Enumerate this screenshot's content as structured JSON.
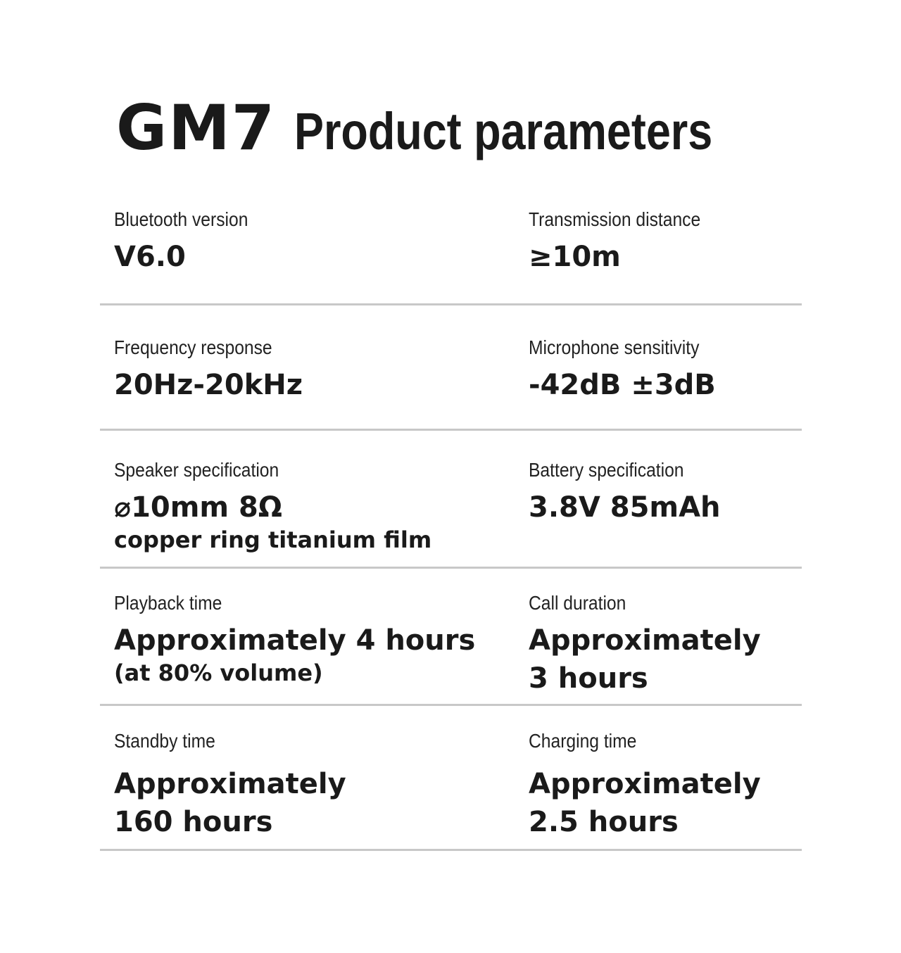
{
  "title": {
    "model": "GM7",
    "text": "Product parameters"
  },
  "params": [
    {
      "label": "Bluetooth version",
      "value": "V6.0",
      "sub": ""
    },
    {
      "label": "Transmission distance",
      "value": "≥10m",
      "sub": ""
    },
    {
      "label": "Frequency response",
      "value": "20Hz-20kHz",
      "sub": ""
    },
    {
      "label": "Microphone sensitivity",
      "value": "-42dB ±3dB",
      "sub": ""
    },
    {
      "label": "Speaker specification",
      "value": "⌀10mm 8Ω",
      "sub": "copper ring titanium film"
    },
    {
      "label": "Battery specification",
      "value": "3.8V 85mAh",
      "sub": ""
    },
    {
      "label": "Playback time",
      "value": "Approximately 4 hours",
      "sub": "(at 80% volume)"
    },
    {
      "label": "Call duration",
      "value": "Approximately",
      "value2": "3 hours"
    },
    {
      "label": "Standby time",
      "value": "Approximately",
      "value2": "160 hours"
    },
    {
      "label": "Charging time",
      "value": "Approximately",
      "value2": "2.5 hours"
    }
  ]
}
